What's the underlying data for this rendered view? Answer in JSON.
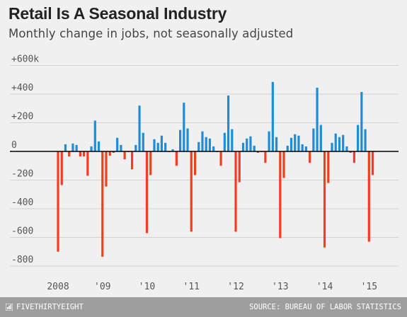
{
  "title": "Retail Is A Seasonal Industry",
  "subtitle": "Monthly change in jobs, not seasonally adjusted",
  "footer": {
    "brand": "FIVETHIRTYEIGHT",
    "source": "SOURCE: BUREAU OF LABOR STATISTICS"
  },
  "colors": {
    "positive": "#1f8dd6",
    "negative": "#ef3f1f",
    "axis": "#000000",
    "grid": "#d2d2d2",
    "background": "#f0f0f0"
  },
  "chart_data": {
    "type": "bar",
    "title": "Retail Is A Seasonal Industry",
    "subtitle": "Monthly change in jobs, not seasonally adjusted",
    "ylabel": "",
    "xlabel": "",
    "ylim": [
      -850,
      650
    ],
    "yticks": [
      600,
      400,
      200,
      0,
      -200,
      -400,
      -600,
      -800
    ],
    "ytick_labels": [
      "+600k",
      "+400",
      "+200",
      "0",
      "-200",
      "-400",
      "-600",
      "-800"
    ],
    "xtick_labels": [
      "2008",
      "'09",
      "'10",
      "'11",
      "'12",
      "'13",
      "'14",
      "'15"
    ],
    "grid": true,
    "x": [
      "2008-01",
      "2008-02",
      "2008-03",
      "2008-04",
      "2008-05",
      "2008-06",
      "2008-07",
      "2008-08",
      "2008-09",
      "2008-10",
      "2008-11",
      "2008-12",
      "2009-01",
      "2009-02",
      "2009-03",
      "2009-04",
      "2009-05",
      "2009-06",
      "2009-07",
      "2009-08",
      "2009-09",
      "2009-10",
      "2009-11",
      "2009-12",
      "2010-01",
      "2010-02",
      "2010-03",
      "2010-04",
      "2010-05",
      "2010-06",
      "2010-07",
      "2010-08",
      "2010-09",
      "2010-10",
      "2010-11",
      "2010-12",
      "2011-01",
      "2011-02",
      "2011-03",
      "2011-04",
      "2011-05",
      "2011-06",
      "2011-07",
      "2011-08",
      "2011-09",
      "2011-10",
      "2011-11",
      "2011-12",
      "2012-01",
      "2012-02",
      "2012-03",
      "2012-04",
      "2012-05",
      "2012-06",
      "2012-07",
      "2012-08",
      "2012-09",
      "2012-10",
      "2012-11",
      "2012-12",
      "2013-01",
      "2013-02",
      "2013-03",
      "2013-04",
      "2013-05",
      "2013-06",
      "2013-07",
      "2013-08",
      "2013-09",
      "2013-10",
      "2013-11",
      "2013-12",
      "2014-01",
      "2014-02",
      "2014-03",
      "2014-04",
      "2014-05",
      "2014-06",
      "2014-07",
      "2014-08",
      "2014-09",
      "2014-10",
      "2014-11",
      "2014-12",
      "2015-01",
      "2015-02"
    ],
    "values": [
      -700,
      -235,
      50,
      -35,
      55,
      45,
      -35,
      -35,
      -170,
      35,
      215,
      70,
      -735,
      -245,
      -30,
      -10,
      95,
      45,
      -55,
      -5,
      -125,
      45,
      320,
      130,
      -570,
      -165,
      85,
      60,
      110,
      60,
      -5,
      15,
      -100,
      150,
      340,
      160,
      -560,
      -165,
      65,
      140,
      100,
      90,
      35,
      -5,
      -100,
      130,
      390,
      155,
      -560,
      -215,
      60,
      90,
      105,
      40,
      -10,
      -5,
      -80,
      140,
      485,
      100,
      -605,
      -185,
      40,
      95,
      120,
      110,
      50,
      35,
      -80,
      160,
      445,
      185,
      -670,
      -220,
      60,
      125,
      100,
      115,
      35,
      -10,
      -80,
      185,
      415,
      155,
      -630,
      -165
    ]
  }
}
